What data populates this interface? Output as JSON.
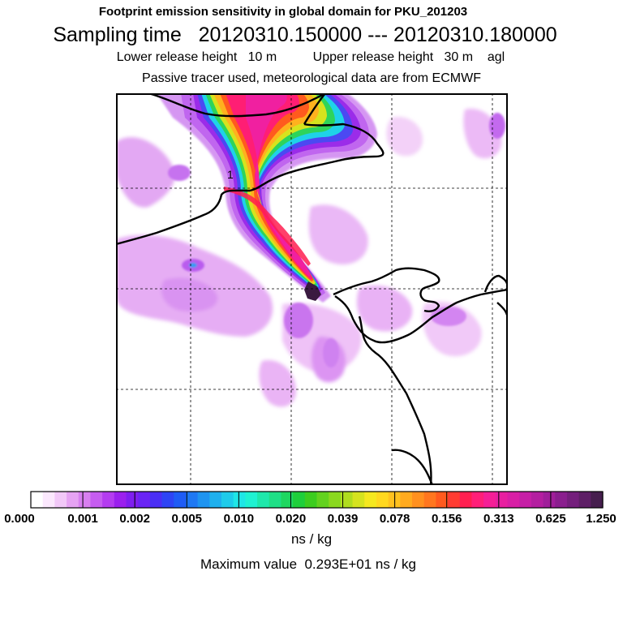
{
  "header": {
    "title": "Footprint emission sensitivity in global domain for PKU_201203",
    "sampling": "Sampling time   20120310.150000 --- 20120310.180000",
    "release": "Lower release height   10 m          Upper release height   30 m    agl",
    "tracer": "Passive tracer used, meteorological data are from ECMWF"
  },
  "chart_data": {
    "type": "heatmap",
    "title": "Footprint emission sensitivity in global domain for PKU_201203",
    "subtitle": "Sampling time   20120310.150000 --- 20120310.180000",
    "release_lower_height": "10 m",
    "release_upper_height": "30 m",
    "height_reference": "agl",
    "tracer_note": "Passive tracer used, meteorological data are from ECMWF",
    "receptor_marker_label": "1",
    "colorbar_ticks": [
      "0.000",
      "0.001",
      "0.002",
      "0.005",
      "0.010",
      "0.020",
      "0.039",
      "0.078",
      "0.156",
      "0.313",
      "0.625",
      "1.250"
    ],
    "colorbar_unit": "ns / kg",
    "scale": "logarithmic (value doubles per labeled interval)",
    "grid": "dashed lines",
    "maximum_value_label": "Maximum value  0.293E+01 ns / kg",
    "maximum_value": 2.93,
    "colors": [
      "#ffffff",
      "#fbe8fd",
      "#f2c8f8",
      "#e6a3f3",
      "#d87ff0",
      "#c65df0",
      "#b43cf0",
      "#9b20ee",
      "#7f1ef0",
      "#6a24f5",
      "#4a2ef5",
      "#2e44f5",
      "#1f5cf5",
      "#1e78f3",
      "#1e94f0",
      "#1eb0ee",
      "#1ecbea",
      "#1fe6e6",
      "#1ff2d2",
      "#1ee8ab",
      "#1edf86",
      "#1ed760",
      "#1ecf3a",
      "#3ccd1e",
      "#63d21e",
      "#8ad81e",
      "#b0dd1e",
      "#d5e31e",
      "#f5e81e",
      "#ffd81e",
      "#ffc21e",
      "#ffaa1e",
      "#ff901e",
      "#ff761e",
      "#ff5a1e",
      "#ff3c32",
      "#ff1e50",
      "#ff1e78",
      "#f51e96",
      "#e81ea0",
      "#d81ea5",
      "#c61ea6",
      "#b41ea0",
      "#a01e9a",
      "#8a1e8e",
      "#741e7c",
      "#5e1e66",
      "#461e4e"
    ]
  },
  "footer": {
    "unit": "ns / kg",
    "max": "Maximum value  0.293E+01 ns / kg"
  }
}
